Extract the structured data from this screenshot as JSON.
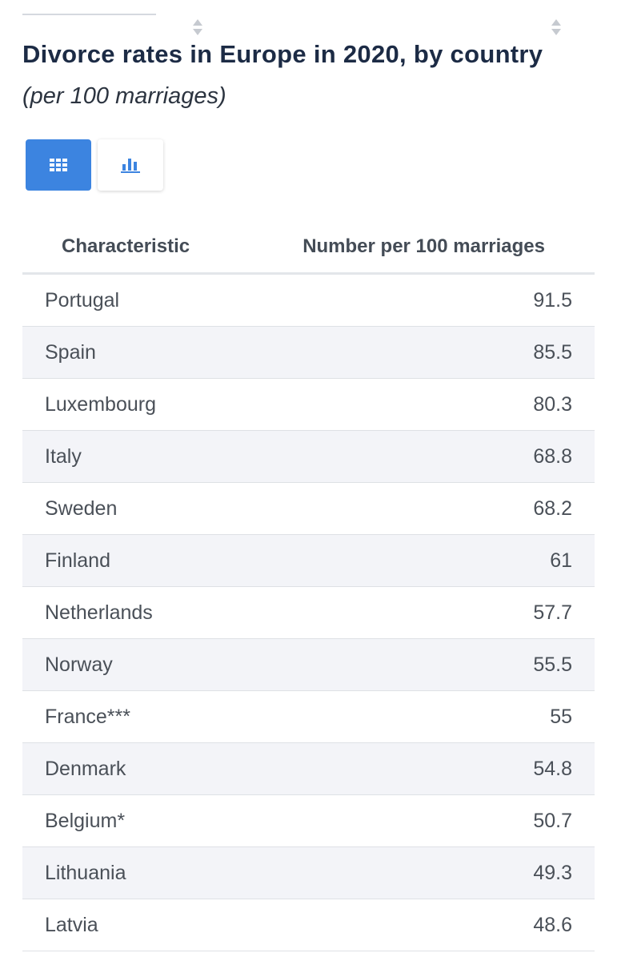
{
  "title": "Divorce rates in Europe in 2020, by country",
  "subtitle": "(per 100 marriages)",
  "view_toggle": {
    "table_icon": "grid-table-icon",
    "chart_icon": "bar-chart-icon",
    "active": "table",
    "active_color": "#3c84e0"
  },
  "table": {
    "headers": [
      "Characteristic",
      "Number per 100 marriages"
    ],
    "rows": [
      {
        "country": "Portugal",
        "value": "91.5"
      },
      {
        "country": "Spain",
        "value": "85.5"
      },
      {
        "country": "Luxembourg",
        "value": "80.3"
      },
      {
        "country": "Italy",
        "value": "68.8"
      },
      {
        "country": "Sweden",
        "value": "68.2"
      },
      {
        "country": "Finland",
        "value": "61"
      },
      {
        "country": "Netherlands",
        "value": "57.7"
      },
      {
        "country": "Norway",
        "value": "55.5"
      },
      {
        "country": "France***",
        "value": "55"
      },
      {
        "country": "Denmark",
        "value": "54.8"
      },
      {
        "country": "Belgium*",
        "value": "50.7"
      },
      {
        "country": "Lithuania",
        "value": "49.3"
      },
      {
        "country": "Latvia",
        "value": "48.6"
      }
    ]
  }
}
